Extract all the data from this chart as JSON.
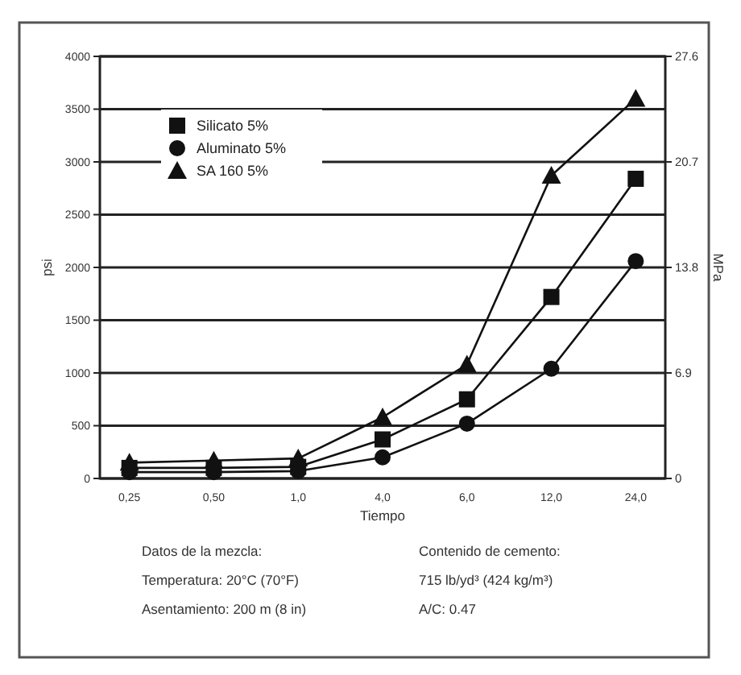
{
  "chart_data": {
    "type": "line",
    "xlabel": "Tiempo",
    "ylabel": "psi",
    "y2label": "MPa",
    "categories": [
      "0,25",
      "0,50",
      "1,0",
      "4,0",
      "6,0",
      "12,0",
      "24,0"
    ],
    "series": [
      {
        "name": "Silicato 5%",
        "color": "#111111",
        "marker": "square",
        "values": [
          100,
          100,
          110,
          370,
          750,
          1720,
          2840
        ]
      },
      {
        "name": "Aluminato 5%",
        "color": "#111111",
        "marker": "circle",
        "values": [
          60,
          60,
          70,
          200,
          520,
          1040,
          2060
        ]
      },
      {
        "name": "SA 160 5%",
        "color": "#111111",
        "marker": "triangle",
        "values": [
          150,
          170,
          190,
          580,
          1080,
          2870,
          3600
        ]
      }
    ],
    "ylim": [
      0,
      4000
    ],
    "yticks": [
      0,
      500,
      1000,
      1500,
      2000,
      2500,
      3000,
      3500,
      4000
    ],
    "y2lim": [
      0,
      27.6
    ],
    "y2ticks": [
      0,
      6.9,
      13.8,
      20.7,
      27.6
    ],
    "grid": "y",
    "legend": "top left",
    "line_style": "solid",
    "annotations": [
      "Datos de la mezcla:",
      "Temperatura: 20°C (70°F)",
      "Asentamiento: 200 m (8 in)",
      "Contenido de cemento:",
      "715 lb/yd³ (424 kg/m³)",
      "A/C: 0.47"
    ]
  }
}
